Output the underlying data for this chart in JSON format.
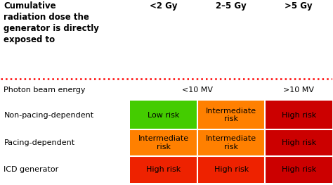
{
  "title_text": "Cumulative\nradiation dose the\ngenerator is directly\nexposed to",
  "col_headers": [
    "<2 Gy",
    "2–5 Gy",
    ">5 Gy"
  ],
  "row_labels": [
    "Photon beam energy",
    "Non-pacing-dependent",
    "Pacing-dependent",
    "ICD generator"
  ],
  "sub_col_headers": [
    "<10 MV",
    ">10 MV"
  ],
  "cells": [
    [
      {
        "text": "Low risk",
        "color": "#44cc00"
      },
      {
        "text": "Intermediate\nrisk",
        "color": "#ff8000"
      },
      {
        "text": "High risk",
        "color": "#cc0000"
      }
    ],
    [
      {
        "text": "Intermediate\nrisk",
        "color": "#ff8000"
      },
      {
        "text": "Intermediate\nrisk",
        "color": "#ff8000"
      },
      {
        "text": "High risk",
        "color": "#cc0000"
      }
    ],
    [
      {
        "text": "High risk",
        "color": "#ee2200"
      },
      {
        "text": "High risk",
        "color": "#ee2200"
      },
      {
        "text": "High risk",
        "color": "#cc0000"
      }
    ]
  ],
  "background_color": "#ffffff",
  "dotted_line_color": "#ff0000",
  "header_fontsize": 8.5,
  "cell_fontsize": 8,
  "row_label_fontsize": 8
}
